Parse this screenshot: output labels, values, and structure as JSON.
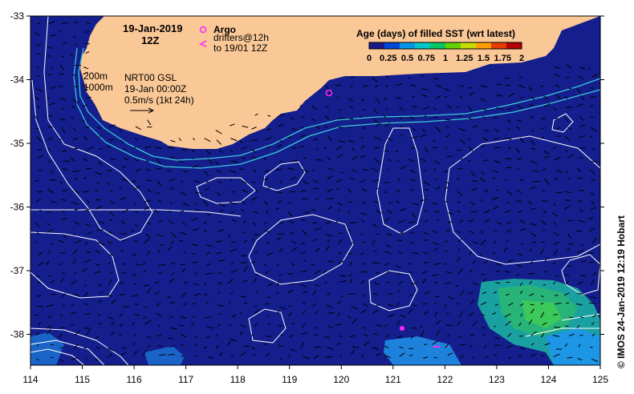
{
  "map": {
    "date_line1": "19-Jan-2019",
    "date_line2": "12Z",
    "argo_label": "Argo",
    "drifters_line1": "drifters@12h",
    "drifters_line2": "to 19/01 12Z",
    "contour_200": "200m",
    "contour_1000": "1000m",
    "product_line1": "NRT00 GSL",
    "product_line2": "19-Jan 00:00Z",
    "vector_scale": "0.5m/s (1kt 24h)",
    "credit": "© IMOS 24-Jan-2019 12:19 Hobart"
  },
  "colorbar": {
    "title": "Age (days) of filled SST (wrt latest)",
    "ticks": [
      "0",
      "0.25",
      "0.5",
      "0.75",
      "1",
      "1.25",
      "1.5",
      "1.75",
      "2"
    ],
    "colors": [
      "#1a1a8c",
      "#0046d8",
      "#0096e6",
      "#00c8c8",
      "#00c864",
      "#64d200",
      "#c8dc00",
      "#ffa000",
      "#e63c00",
      "#b40000"
    ]
  },
  "axes": {
    "lon_ticks": [
      "114",
      "115",
      "116",
      "117",
      "118",
      "119",
      "120",
      "121",
      "122",
      "123",
      "124",
      "125"
    ],
    "lat_ticks": [
      "-33",
      "-34",
      "-35",
      "-36",
      "-37",
      "-38"
    ]
  },
  "colors": {
    "ocean": "#141e8c",
    "land": "#fac896",
    "contour": "#ffffff",
    "isobath": "#3cc8dc",
    "argo": "#ff28ff"
  }
}
